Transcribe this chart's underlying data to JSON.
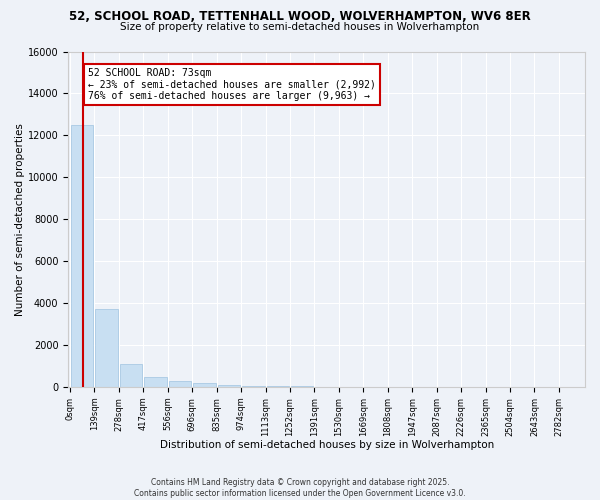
{
  "title": "52, SCHOOL ROAD, TETTENHALL WOOD, WOLVERHAMPTON, WV6 8ER",
  "subtitle": "Size of property relative to semi-detached houses in Wolverhampton",
  "xlabel": "Distribution of semi-detached houses by size in Wolverhampton",
  "ylabel": "Number of semi-detached properties",
  "annotation_line1": "52 SCHOOL ROAD: 73sqm",
  "annotation_line2": "← 23% of semi-detached houses are smaller (2,992)",
  "annotation_line3": "76% of semi-detached houses are larger (9,963) →",
  "footer": "Contains HM Land Registry data © Crown copyright and database right 2025.\nContains public sector information licensed under the Open Government Licence v3.0.",
  "bin_width": 139,
  "bins": [
    0,
    139,
    278,
    417,
    556,
    696,
    835,
    974,
    1113,
    1252,
    1391,
    1530,
    1669,
    1808,
    1947,
    2087,
    2226,
    2365,
    2504,
    2643,
    2782
  ],
  "bar_heights": [
    12500,
    3700,
    1100,
    500,
    300,
    180,
    110,
    70,
    45,
    28,
    18,
    12,
    8,
    6,
    4,
    3,
    2,
    2,
    1,
    1,
    1
  ],
  "bar_color_normal": "#c8dff2",
  "bar_edge_color": "#a0c4e0",
  "vline_color": "#cc0000",
  "vline_x": 73,
  "annotation_box_color": "#cc0000",
  "ylim": [
    0,
    16000
  ],
  "yticks": [
    0,
    2000,
    4000,
    6000,
    8000,
    10000,
    12000,
    14000,
    16000
  ],
  "background_color": "#eef2f8",
  "grid_color": "#ffffff"
}
